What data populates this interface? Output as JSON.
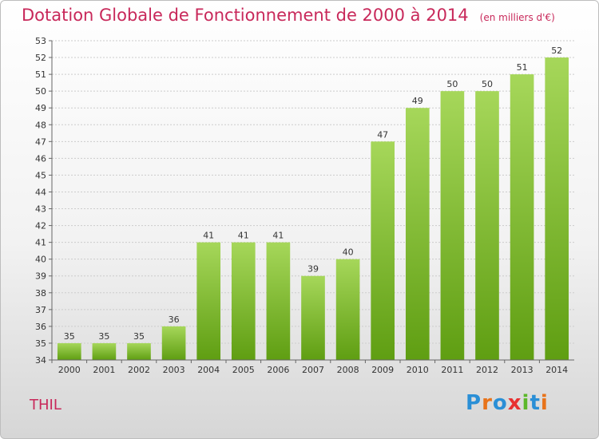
{
  "header": {
    "title": "Dotation Globale de Fonctionnement de 2000 à 2014",
    "unit": "(en milliers d'€)"
  },
  "footer": {
    "city": "THIL",
    "logo": "Proxiti",
    "logo_colors": [
      "#2a8fd6",
      "#e8731a",
      "#2a8fd6",
      "#e83030",
      "#5cb82a",
      "#2a8fd6",
      "#e8731a"
    ]
  },
  "chart_data": {
    "type": "bar",
    "categories": [
      "2000",
      "2001",
      "2002",
      "2003",
      "2004",
      "2005",
      "2006",
      "2007",
      "2008",
      "2009",
      "2010",
      "2011",
      "2012",
      "2013",
      "2014"
    ],
    "values": [
      35,
      35,
      35,
      36,
      41,
      41,
      41,
      39,
      40,
      47,
      49,
      50,
      50,
      51,
      52
    ],
    "title": "Dotation Globale de Fonctionnement de 2000 à 2014",
    "xlabel": "",
    "ylabel": "",
    "ylim": [
      34,
      53
    ],
    "yticks": [
      34,
      35,
      36,
      37,
      38,
      39,
      40,
      41,
      42,
      43,
      44,
      45,
      46,
      47,
      48,
      49,
      50,
      51,
      52,
      53
    ],
    "grid": true,
    "colors": {
      "bar_top": "#a6d75a",
      "bar_bottom": "#5f9e12",
      "grid": "#cccccc"
    }
  }
}
